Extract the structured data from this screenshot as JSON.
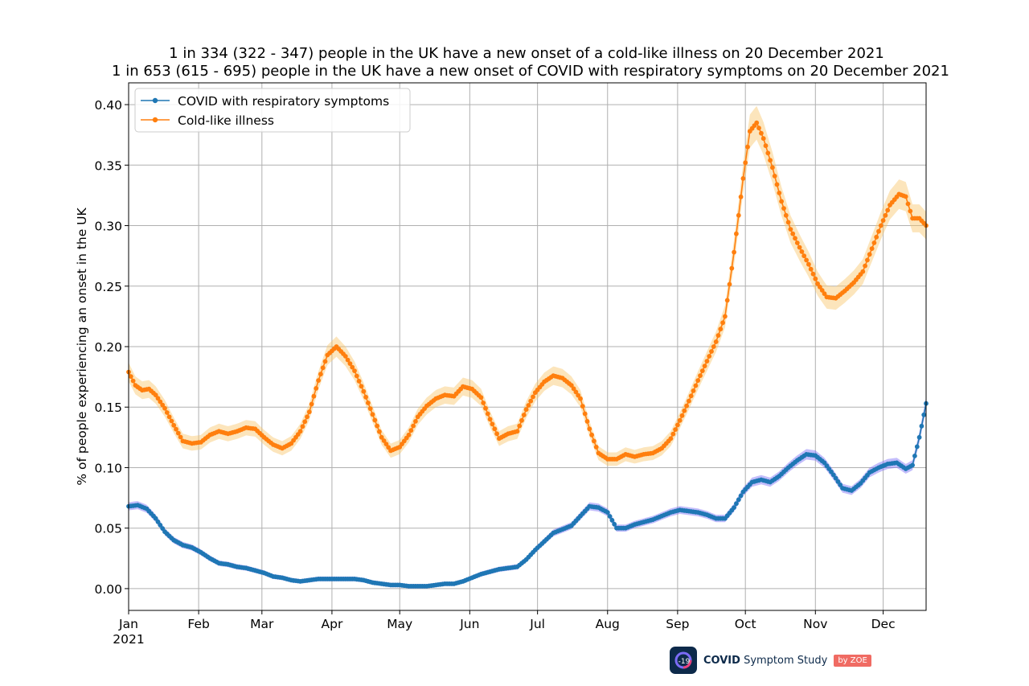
{
  "chart_data": {
    "type": "line",
    "title_lines": [
      "1 in 334 (322 - 347) people in the UK have a new onset of a cold-like illness on 20 December 2021",
      "1 in 653 (615 - 695) people in the UK have a new onset of COVID with respiratory symptoms on 20 December 2021"
    ],
    "xlabel": "",
    "ylabel": "% of people experiencing an onset in the UK",
    "x_range": [
      "2021-01-01",
      "2021-12-20"
    ],
    "ylim": [
      -0.018,
      0.418
    ],
    "yticks": [
      0.0,
      0.05,
      0.1,
      0.15,
      0.2,
      0.25,
      0.3,
      0.35,
      0.4
    ],
    "ytick_labels": [
      "0.00",
      "0.05",
      "0.10",
      "0.15",
      "0.20",
      "0.25",
      "0.30",
      "0.35",
      "0.40"
    ],
    "xtick_dates": [
      "2021-01-01",
      "2021-02-01",
      "2021-03-01",
      "2021-04-01",
      "2021-05-01",
      "2021-06-01",
      "2021-07-01",
      "2021-08-01",
      "2021-09-01",
      "2021-10-01",
      "2021-11-01",
      "2021-12-01"
    ],
    "xtick_labels": [
      "Jan",
      "Feb",
      "Mar",
      "Apr",
      "May",
      "Jun",
      "Jul",
      "Aug",
      "Sep",
      "Oct",
      "Nov",
      "Dec"
    ],
    "xtick_year_label": "2021",
    "grid": true,
    "legend_position": "top-left",
    "series": [
      {
        "name": "COVID with respiratory symptoms",
        "color": "#1f77b4",
        "band_color": "#7b6cf6",
        "band_halfwidth": 0.0045,
        "points": [
          [
            "2021-01-01",
            0.068
          ],
          [
            "2021-01-05",
            0.069
          ],
          [
            "2021-01-09",
            0.066
          ],
          [
            "2021-01-13",
            0.058
          ],
          [
            "2021-01-17",
            0.047
          ],
          [
            "2021-01-21",
            0.04
          ],
          [
            "2021-01-25",
            0.036
          ],
          [
            "2021-01-29",
            0.034
          ],
          [
            "2021-02-02",
            0.03
          ],
          [
            "2021-02-06",
            0.025
          ],
          [
            "2021-02-10",
            0.021
          ],
          [
            "2021-02-14",
            0.02
          ],
          [
            "2021-02-18",
            0.018
          ],
          [
            "2021-02-22",
            0.017
          ],
          [
            "2021-02-26",
            0.015
          ],
          [
            "2021-03-02",
            0.013
          ],
          [
            "2021-03-06",
            0.01
          ],
          [
            "2021-03-10",
            0.009
          ],
          [
            "2021-03-14",
            0.007
          ],
          [
            "2021-03-18",
            0.006
          ],
          [
            "2021-03-22",
            0.007
          ],
          [
            "2021-03-26",
            0.008
          ],
          [
            "2021-03-30",
            0.008
          ],
          [
            "2021-04-03",
            0.008
          ],
          [
            "2021-04-07",
            0.008
          ],
          [
            "2021-04-11",
            0.008
          ],
          [
            "2021-04-15",
            0.007
          ],
          [
            "2021-04-19",
            0.005
          ],
          [
            "2021-04-23",
            0.004
          ],
          [
            "2021-04-27",
            0.003
          ],
          [
            "2021-05-01",
            0.003
          ],
          [
            "2021-05-05",
            0.002
          ],
          [
            "2021-05-09",
            0.002
          ],
          [
            "2021-05-13",
            0.002
          ],
          [
            "2021-05-17",
            0.003
          ],
          [
            "2021-05-21",
            0.004
          ],
          [
            "2021-05-25",
            0.004
          ],
          [
            "2021-05-29",
            0.006
          ],
          [
            "2021-06-02",
            0.009
          ],
          [
            "2021-06-06",
            0.012
          ],
          [
            "2021-06-10",
            0.014
          ],
          [
            "2021-06-14",
            0.016
          ],
          [
            "2021-06-18",
            0.017
          ],
          [
            "2021-06-22",
            0.018
          ],
          [
            "2021-06-26",
            0.024
          ],
          [
            "2021-06-30",
            0.032
          ],
          [
            "2021-07-04",
            0.039
          ],
          [
            "2021-07-08",
            0.046
          ],
          [
            "2021-07-12",
            0.049
          ],
          [
            "2021-07-16",
            0.052
          ],
          [
            "2021-07-20",
            0.06
          ],
          [
            "2021-07-24",
            0.068
          ],
          [
            "2021-07-28",
            0.067
          ],
          [
            "2021-08-01",
            0.063
          ],
          [
            "2021-08-05",
            0.05
          ],
          [
            "2021-08-09",
            0.05
          ],
          [
            "2021-08-13",
            0.053
          ],
          [
            "2021-08-17",
            0.055
          ],
          [
            "2021-08-21",
            0.057
          ],
          [
            "2021-08-25",
            0.06
          ],
          [
            "2021-08-29",
            0.063
          ],
          [
            "2021-09-02",
            0.065
          ],
          [
            "2021-09-06",
            0.064
          ],
          [
            "2021-09-10",
            0.063
          ],
          [
            "2021-09-14",
            0.061
          ],
          [
            "2021-09-18",
            0.058
          ],
          [
            "2021-09-22",
            0.058
          ],
          [
            "2021-09-26",
            0.067
          ],
          [
            "2021-09-30",
            0.08
          ],
          [
            "2021-10-04",
            0.088
          ],
          [
            "2021-10-08",
            0.09
          ],
          [
            "2021-10-12",
            0.088
          ],
          [
            "2021-10-16",
            0.093
          ],
          [
            "2021-10-20",
            0.1
          ],
          [
            "2021-10-24",
            0.106
          ],
          [
            "2021-10-28",
            0.111
          ],
          [
            "2021-11-01",
            0.11
          ],
          [
            "2021-11-05",
            0.104
          ],
          [
            "2021-11-09",
            0.094
          ],
          [
            "2021-11-13",
            0.083
          ],
          [
            "2021-11-17",
            0.081
          ],
          [
            "2021-11-21",
            0.087
          ],
          [
            "2021-11-25",
            0.096
          ],
          [
            "2021-11-29",
            0.1
          ],
          [
            "2021-12-03",
            0.103
          ],
          [
            "2021-12-07",
            0.104
          ],
          [
            "2021-12-11",
            0.099
          ],
          [
            "2021-12-14",
            0.102
          ],
          [
            "2021-12-17",
            0.125
          ],
          [
            "2021-12-20",
            0.153
          ]
        ]
      },
      {
        "name": "Cold-like illness",
        "color": "#ff7f0e",
        "band_color": "#f8c56a",
        "band_halfwidth": 0.006,
        "points": [
          [
            "2021-01-01",
            0.179
          ],
          [
            "2021-01-04",
            0.168
          ],
          [
            "2021-01-07",
            0.164
          ],
          [
            "2021-01-10",
            0.165
          ],
          [
            "2021-01-13",
            0.16
          ],
          [
            "2021-01-17",
            0.149
          ],
          [
            "2021-01-21",
            0.135
          ],
          [
            "2021-01-25",
            0.122
          ],
          [
            "2021-01-29",
            0.12
          ],
          [
            "2021-02-02",
            0.121
          ],
          [
            "2021-02-06",
            0.127
          ],
          [
            "2021-02-10",
            0.13
          ],
          [
            "2021-02-14",
            0.128
          ],
          [
            "2021-02-18",
            0.13
          ],
          [
            "2021-02-22",
            0.133
          ],
          [
            "2021-02-26",
            0.132
          ],
          [
            "2021-03-02",
            0.125
          ],
          [
            "2021-03-06",
            0.119
          ],
          [
            "2021-03-10",
            0.116
          ],
          [
            "2021-03-14",
            0.12
          ],
          [
            "2021-03-18",
            0.13
          ],
          [
            "2021-03-22",
            0.146
          ],
          [
            "2021-03-26",
            0.172
          ],
          [
            "2021-03-30",
            0.193
          ],
          [
            "2021-04-03",
            0.2
          ],
          [
            "2021-04-07",
            0.192
          ],
          [
            "2021-04-11",
            0.18
          ],
          [
            "2021-04-15",
            0.163
          ],
          [
            "2021-04-19",
            0.144
          ],
          [
            "2021-04-23",
            0.125
          ],
          [
            "2021-04-27",
            0.114
          ],
          [
            "2021-05-01",
            0.117
          ],
          [
            "2021-05-05",
            0.127
          ],
          [
            "2021-05-09",
            0.142
          ],
          [
            "2021-05-13",
            0.151
          ],
          [
            "2021-05-17",
            0.157
          ],
          [
            "2021-05-21",
            0.16
          ],
          [
            "2021-05-25",
            0.159
          ],
          [
            "2021-05-29",
            0.167
          ],
          [
            "2021-06-02",
            0.165
          ],
          [
            "2021-06-06",
            0.158
          ],
          [
            "2021-06-10",
            0.14
          ],
          [
            "2021-06-14",
            0.124
          ],
          [
            "2021-06-18",
            0.128
          ],
          [
            "2021-06-22",
            0.13
          ],
          [
            "2021-06-26",
            0.148
          ],
          [
            "2021-06-30",
            0.162
          ],
          [
            "2021-07-04",
            0.171
          ],
          [
            "2021-07-08",
            0.176
          ],
          [
            "2021-07-12",
            0.174
          ],
          [
            "2021-07-16",
            0.168
          ],
          [
            "2021-07-20",
            0.157
          ],
          [
            "2021-07-24",
            0.132
          ],
          [
            "2021-07-28",
            0.112
          ],
          [
            "2021-08-01",
            0.107
          ],
          [
            "2021-08-05",
            0.107
          ],
          [
            "2021-08-09",
            0.111
          ],
          [
            "2021-08-13",
            0.109
          ],
          [
            "2021-08-17",
            0.111
          ],
          [
            "2021-08-21",
            0.112
          ],
          [
            "2021-08-25",
            0.116
          ],
          [
            "2021-08-29",
            0.124
          ],
          [
            "2021-09-02",
            0.139
          ],
          [
            "2021-09-06",
            0.155
          ],
          [
            "2021-09-10",
            0.172
          ],
          [
            "2021-09-14",
            0.188
          ],
          [
            "2021-09-18",
            0.204
          ],
          [
            "2021-09-22",
            0.225
          ],
          [
            "2021-09-26",
            0.278
          ],
          [
            "2021-09-30",
            0.339
          ],
          [
            "2021-10-03",
            0.378
          ],
          [
            "2021-10-06",
            0.385
          ],
          [
            "2021-10-09",
            0.372
          ],
          [
            "2021-10-13",
            0.348
          ],
          [
            "2021-10-17",
            0.32
          ],
          [
            "2021-10-21",
            0.297
          ],
          [
            "2021-10-25",
            0.282
          ],
          [
            "2021-10-29",
            0.268
          ],
          [
            "2021-11-02",
            0.252
          ],
          [
            "2021-11-06",
            0.241
          ],
          [
            "2021-11-10",
            0.24
          ],
          [
            "2021-11-14",
            0.246
          ],
          [
            "2021-11-18",
            0.253
          ],
          [
            "2021-11-22",
            0.262
          ],
          [
            "2021-11-26",
            0.281
          ],
          [
            "2021-11-30",
            0.3
          ],
          [
            "2021-12-04",
            0.317
          ],
          [
            "2021-12-08",
            0.326
          ],
          [
            "2021-12-11",
            0.324
          ],
          [
            "2021-12-14",
            0.306
          ],
          [
            "2021-12-17",
            0.306
          ],
          [
            "2021-12-20",
            0.3
          ]
        ]
      }
    ]
  },
  "branding": {
    "badge_text": "-19",
    "name_bold": "COVID",
    "name_rest": " Symptom Study",
    "by_label": "by ZOE"
  }
}
